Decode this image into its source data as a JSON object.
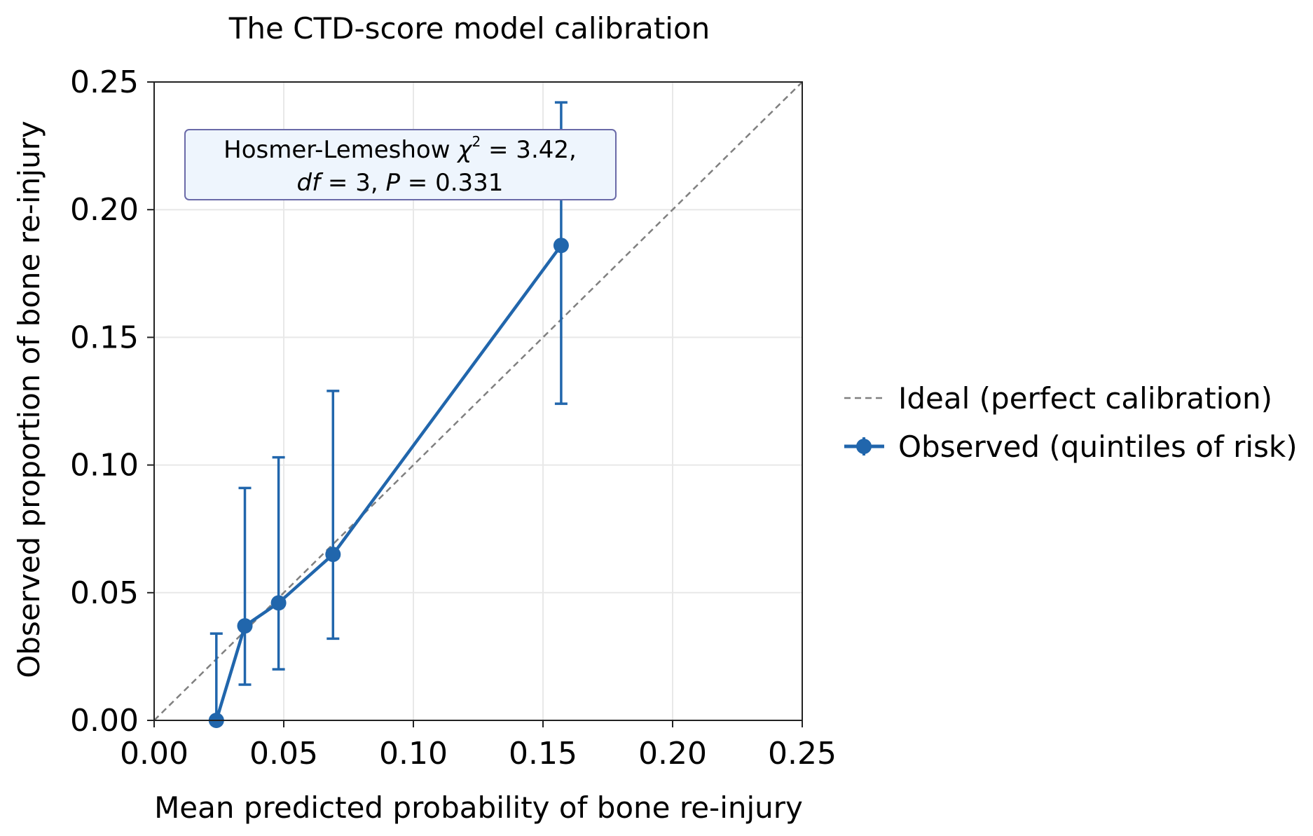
{
  "chart_data": {
    "type": "line",
    "title": "The CTD-score model calibration",
    "xlabel": "Mean predicted probability of bone re-injury",
    "ylabel": "Observed proportion of bone re-injury",
    "xlim": [
      0,
      0.25
    ],
    "ylim": [
      0,
      0.25
    ],
    "xticks": [
      "0.00",
      "0.05",
      "0.10",
      "0.15",
      "0.20",
      "0.25"
    ],
    "yticks": [
      "0.00",
      "0.05",
      "0.10",
      "0.15",
      "0.20",
      "0.25"
    ],
    "grid": true,
    "legend_position": "right",
    "series": [
      {
        "name": "Ideal (perfect calibration)",
        "style": "dashed",
        "color": "#808080",
        "x": [
          0,
          0.25
        ],
        "y": [
          0,
          0.25
        ]
      },
      {
        "name": "Observed (quintiles of risk)",
        "style": "solid-with-markers",
        "color": "#2166ac",
        "x": [
          0.024,
          0.035,
          0.048,
          0.069,
          0.157
        ],
        "y": [
          0.0,
          0.037,
          0.046,
          0.065,
          0.186
        ],
        "err_low": [
          0.0,
          0.014,
          0.02,
          0.032,
          0.124
        ],
        "err_high": [
          0.034,
          0.091,
          0.103,
          0.129,
          0.242
        ]
      }
    ],
    "annotation": {
      "line1_prefix": "Hosmer-Lemeshow ",
      "chi_symbol": "χ",
      "superscript": "2",
      "line1_suffix": " = 3.42,",
      "line2_df_symbol": "df",
      "line2_df_value": " = 3, ",
      "line2_p_symbol": "P",
      "line2_p_value": " = 0.331"
    }
  }
}
